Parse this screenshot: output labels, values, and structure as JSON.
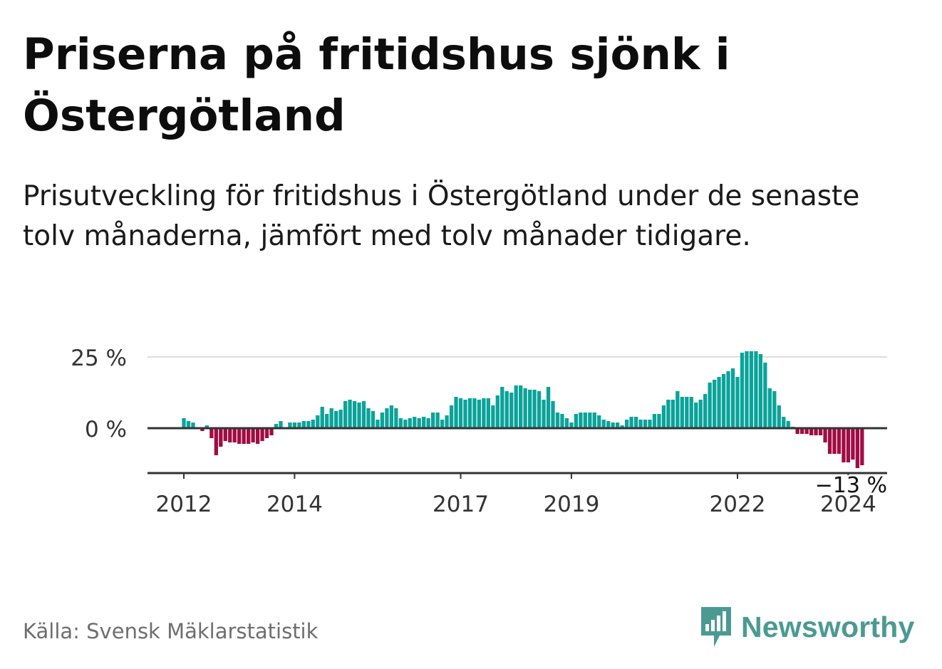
{
  "title": "Priserna på fritidshus sjönk i Östergötland",
  "subtitle": "Prisutveckling för fritidshus i Östergötland under de senaste tolv månaderna, jämfört med tolv månader tidigare.",
  "source": "Källa: Svensk Mäklarstatistik",
  "brand": {
    "name": "Newsworthy"
  },
  "colors": {
    "positive": "#0aa39a",
    "negative": "#a00c43",
    "axis": "#333333",
    "grid": "#dddddd",
    "brand": "#4b9a92"
  },
  "chart_data": {
    "type": "bar",
    "title": "Priserna på fritidshus sjönk i Östergötland",
    "ylabel": "",
    "xlabel": "",
    "ylim": [
      -16,
      25
    ],
    "yticks": [
      {
        "value": 25,
        "label": "25 %"
      },
      {
        "value": 0,
        "label": "0 %"
      }
    ],
    "start": "2012-01",
    "xticks": [
      {
        "year": 2012,
        "label": "2012"
      },
      {
        "year": 2014,
        "label": "2014"
      },
      {
        "year": 2017,
        "label": "2017"
      },
      {
        "year": 2019,
        "label": "2019"
      },
      {
        "year": 2022,
        "label": "2022"
      },
      {
        "year": 2024,
        "label": "2024"
      }
    ],
    "last_value_label": "−13 %",
    "values": [
      3.5,
      2.5,
      2,
      0,
      -1,
      1,
      -3.5,
      -9.5,
      -6.5,
      -4.5,
      -5,
      -5,
      -5.5,
      -5.5,
      -5.5,
      -5,
      -5.5,
      -4.5,
      -3.5,
      -2.5,
      1.5,
      2.5,
      0,
      2,
      2,
      2,
      2.5,
      2.5,
      3,
      4.5,
      7.5,
      5,
      7,
      6,
      6.5,
      9.5,
      10,
      9.5,
      9,
      9.5,
      7,
      6,
      3,
      5.5,
      7,
      8,
      7,
      3.5,
      3,
      3.5,
      4,
      3.5,
      4,
      3.5,
      5.5,
      5.5,
      3,
      4.5,
      8,
      11,
      10.5,
      10,
      10.5,
      10.5,
      10,
      10.5,
      10.5,
      8,
      11.5,
      14.5,
      13,
      12.5,
      15,
      15,
      14,
      13.5,
      13.5,
      13,
      10,
      14.5,
      9.5,
      5.5,
      5,
      3.5,
      2,
      5,
      5.5,
      5.5,
      5.5,
      5.5,
      4.5,
      3,
      2.5,
      2,
      2,
      1,
      3,
      4,
      4,
      3,
      3,
      3,
      5,
      5,
      8,
      10,
      10,
      13,
      11,
      11,
      11,
      9,
      10,
      12,
      16,
      17,
      18,
      19,
      20,
      21,
      18,
      26.5,
      27,
      27,
      27,
      26,
      23,
      14,
      13,
      8,
      4,
      2.5,
      0.5,
      -2,
      -2,
      -2,
      -2.5,
      -2.5,
      -2.5,
      -5,
      -9,
      -9,
      -9,
      -12,
      -12,
      -11,
      -14,
      -13
    ]
  }
}
